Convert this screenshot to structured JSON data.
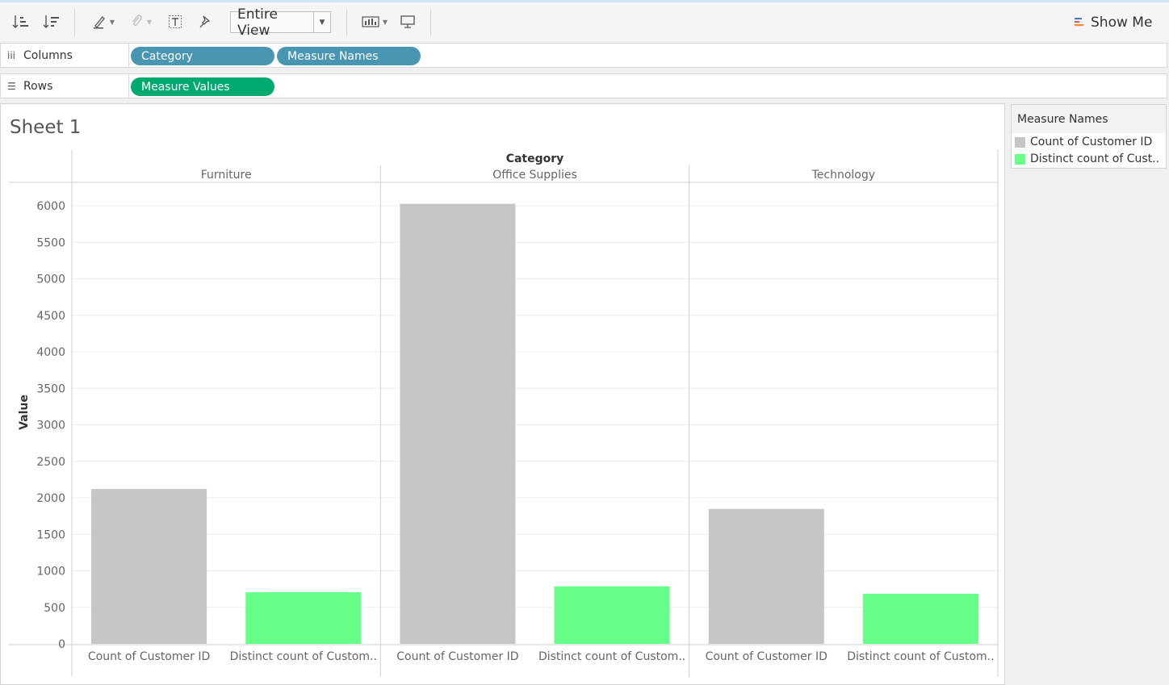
{
  "toolbar": {
    "view_mode": "Entire View",
    "show_me": "Show Me",
    "icons": [
      "sort-ascending-icon",
      "sort-descending-icon",
      "highlight-pen-icon",
      "attach-clip-icon",
      "text-label-icon",
      "pin-icon",
      "chart-format-icon",
      "presentation-icon",
      "show-me-icon"
    ]
  },
  "columns_shelf": {
    "label": "Columns",
    "pills": [
      "Category",
      "Measure Names"
    ]
  },
  "rows_shelf": {
    "label": "Rows",
    "pills": [
      "Measure Values"
    ]
  },
  "sheet": {
    "title": "Sheet 1"
  },
  "legend": {
    "title": "Measure Names",
    "items": [
      {
        "label": "Count of Customer ID",
        "color": "#c6c6c6"
      },
      {
        "label": "Distinct count of Cust..",
        "color": "#66ff88"
      }
    ]
  },
  "colors": {
    "pill_blue": "#4996b2",
    "pill_green": "#00a96e",
    "count_bar": "#c6c6c6",
    "distinct_bar": "#66ff88"
  },
  "chart_data": {
    "type": "bar",
    "header": "Category",
    "ylabel": "Value",
    "ylim": [
      0,
      6000
    ],
    "yticks": [
      0,
      500,
      1000,
      1500,
      2000,
      2500,
      3000,
      3500,
      4000,
      4500,
      5000,
      5500,
      6000
    ],
    "grid": true,
    "categories": [
      "Furniture",
      "Office Supplies",
      "Technology"
    ],
    "bar_labels": [
      "Count of Customer ID",
      "Distinct count of Custom.."
    ],
    "series": [
      {
        "name": "Count of Customer ID",
        "values": [
          2121,
          6026,
          1847
        ]
      },
      {
        "name": "Distinct count of Custom..",
        "values": [
          707,
          788,
          687
        ]
      }
    ]
  }
}
